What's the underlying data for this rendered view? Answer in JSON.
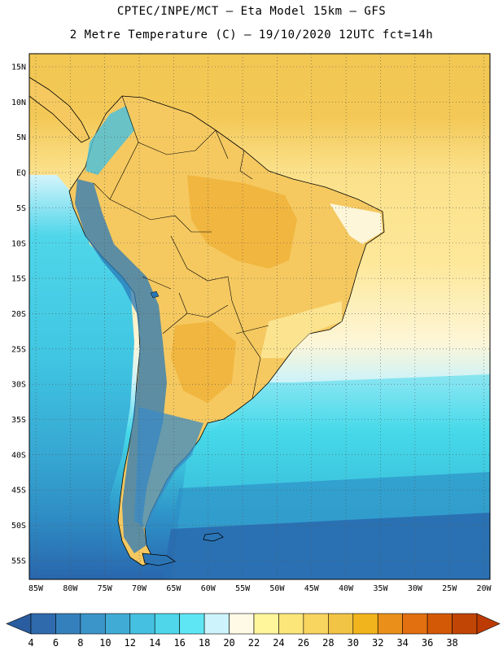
{
  "header": {
    "title_line1": "CPTEC/INPE/MCT –  Eta Model 15km – GFS",
    "title_line2": "2 Metre Temperature (C) – 19/10/2020 12UTC fct=14h"
  },
  "map": {
    "region": "South America",
    "lat_labels": [
      "15N",
      "10N",
      "5N",
      "EQ",
      "5S",
      "10S",
      "15S",
      "20S",
      "25S",
      "30S",
      "35S",
      "40S",
      "45S",
      "50S",
      "55S"
    ],
    "lon_labels": [
      "85W",
      "80W",
      "75W",
      "70W",
      "65W",
      "60W",
      "55W",
      "50W",
      "45W",
      "40W",
      "35W",
      "30W",
      "25W",
      "20W"
    ],
    "grid": "dotted",
    "ocean_colors": {
      "tropical_north": "#f2c752",
      "tropical_band": "#fbe089",
      "subtropical": "#fdf6d8",
      "cool_pale": "#c9f2fb",
      "cool_cyan": "#46d9ea",
      "cool_mid": "#38b8d8",
      "cold": "#2e92c8",
      "colder": "#2a75b6",
      "coldest": "#2966ac"
    },
    "land_colors": {
      "hot": "#f0b33a",
      "warm": "#f5c960",
      "mild": "#fbe38f",
      "andes_cold": "#2a78b8",
      "patagonia": "#3a8bc4"
    }
  },
  "colorbar": {
    "labels": [
      "4",
      "6",
      "8",
      "10",
      "12",
      "14",
      "16",
      "18",
      "20",
      "22",
      "24",
      "26",
      "28",
      "30",
      "32",
      "34",
      "36",
      "38"
    ],
    "colors": [
      "#2f6aad",
      "#3480bd",
      "#3b95c9",
      "#40acd6",
      "#46c0e0",
      "#4fd6ea",
      "#5fe6f5",
      "#cdf4fc",
      "#fefae5",
      "#fff59b",
      "#fde679",
      "#f8d55f",
      "#f2c445",
      "#f2b41d",
      "#ea8f1a",
      "#e26f10",
      "#d45906",
      "#c14504"
    ],
    "low_arrow_color": "#2a5d9f",
    "high_arrow_color": "#bd3b03"
  }
}
